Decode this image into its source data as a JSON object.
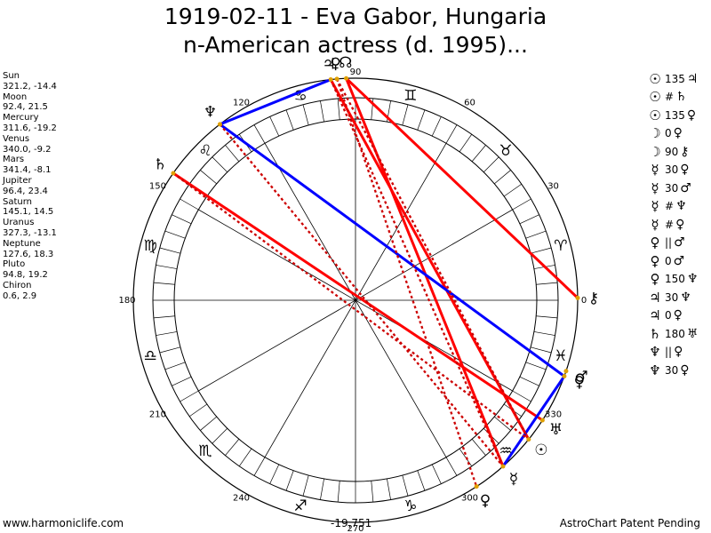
{
  "title_line1": "1919-02-11 - Eva Gabor, Hungaria",
  "title_line2": "n-American actress (d. 1995)...",
  "planets": [
    {
      "name": "Sun",
      "coords": "321.2, -14.4"
    },
    {
      "name": "Moon",
      "coords": "92.4, 21.5"
    },
    {
      "name": "Mercury",
      "coords": "311.6, -19.2"
    },
    {
      "name": "Venus",
      "coords": "340.0, -9.2"
    },
    {
      "name": "Mars",
      "coords": "341.4, -8.1"
    },
    {
      "name": "Jupiter",
      "coords": "96.4, 23.4"
    },
    {
      "name": "Saturn",
      "coords": "145.1, 14.5"
    },
    {
      "name": "Uranus",
      "coords": "327.3, -13.1"
    },
    {
      "name": "Neptune",
      "coords": "127.6, 18.3"
    },
    {
      "name": "Pluto",
      "coords": "94.8, 19.2"
    },
    {
      "name": "Chiron",
      "coords": "0.6, 2.9"
    }
  ],
  "aspects": [
    {
      "p1": "☉",
      "sym": "135",
      "p2": "♃"
    },
    {
      "p1": "☉",
      "sym": "#",
      "p2": "♄"
    },
    {
      "p1": "☉",
      "sym": "135",
      "p2": "♀"
    },
    {
      "p1": "☽",
      "sym": "0",
      "p2": "♀"
    },
    {
      "p1": "☽",
      "sym": "90",
      "p2": "⚷"
    },
    {
      "p1": "☿",
      "sym": "30",
      "p2": "♀"
    },
    {
      "p1": "☿",
      "sym": "30",
      "p2": "♂"
    },
    {
      "p1": "☿",
      "sym": "#",
      "p2": "♆"
    },
    {
      "p1": "☿",
      "sym": "#",
      "p2": "♀"
    },
    {
      "p1": "♀",
      "sym": "||",
      "p2": "♂"
    },
    {
      "p1": "♀",
      "sym": "0",
      "p2": "♂"
    },
    {
      "p1": "♀",
      "sym": "150",
      "p2": "♆"
    },
    {
      "p1": "♃",
      "sym": "30",
      "p2": "♆"
    },
    {
      "p1": "♃",
      "sym": "0",
      "p2": "♀"
    },
    {
      "p1": "♄",
      "sym": "180",
      "p2": "♅"
    },
    {
      "p1": "♆",
      "sym": "||",
      "p2": "♀"
    },
    {
      "p1": "♆",
      "sym": "30",
      "p2": "♀"
    }
  ],
  "degree_labels": [
    "0",
    "30",
    "60",
    "90",
    "120",
    "150",
    "180",
    "210",
    "240",
    "270",
    "300",
    "330"
  ],
  "zodiac_signs": [
    "♈",
    "♉",
    "♊",
    "♋",
    "♌",
    "♍",
    "♎",
    "♏",
    "♐",
    "♑",
    "♒",
    "♓"
  ],
  "chart_planet_glyphs": [
    {
      "glyph": "♃",
      "lon": 96.4
    },
    {
      "glyph": "☊",
      "lon": 92.4
    },
    {
      "glyph": "♀",
      "lon": 94.8
    },
    {
      "glyph": "♆",
      "lon": 127.6
    },
    {
      "glyph": "♄",
      "lon": 145.1
    },
    {
      "glyph": "⚷",
      "lon": 0.6
    },
    {
      "glyph": "♂",
      "lon": 341.4
    },
    {
      "glyph": "♀",
      "lon": 340.0
    },
    {
      "glyph": "♅",
      "lon": 327.3
    },
    {
      "glyph": "☉",
      "lon": 321.2
    },
    {
      "glyph": "☿",
      "lon": 311.6
    },
    {
      "glyph": "♀",
      "lon": 303.0
    }
  ],
  "aspect_lines": [
    {
      "from": 96.4,
      "to": 321.2,
      "color": "#ff0000",
      "style": "solid"
    },
    {
      "from": 92.4,
      "to": 311.6,
      "color": "#ff0000",
      "style": "solid"
    },
    {
      "from": 92.4,
      "to": 0.6,
      "color": "#ff0000",
      "style": "solid"
    },
    {
      "from": 145.1,
      "to": 327.3,
      "color": "#ff0000",
      "style": "solid"
    },
    {
      "from": 127.6,
      "to": 340.0,
      "color": "#0000ff",
      "style": "solid"
    },
    {
      "from": 127.6,
      "to": 96.4,
      "color": "#0000ff",
      "style": "solid"
    },
    {
      "from": 340.0,
      "to": 311.6,
      "color": "#0000ff",
      "style": "solid"
    },
    {
      "from": 94.8,
      "to": 303.0,
      "color": "#cc0000",
      "style": "dotted"
    },
    {
      "from": 96.4,
      "to": 311.6,
      "color": "#cc0000",
      "style": "dotted"
    },
    {
      "from": 127.6,
      "to": 311.6,
      "color": "#cc0000",
      "style": "dotted"
    },
    {
      "from": 145.1,
      "to": 321.2,
      "color": "#cc0000",
      "style": "dotted"
    },
    {
      "from": 94.8,
      "to": 321.2,
      "color": "#cc0000",
      "style": "dotted"
    }
  ],
  "footer_left": "www.harmoniclife.com",
  "footer_center": "-19,751",
  "footer_right": "AstroChart Patent Pending"
}
